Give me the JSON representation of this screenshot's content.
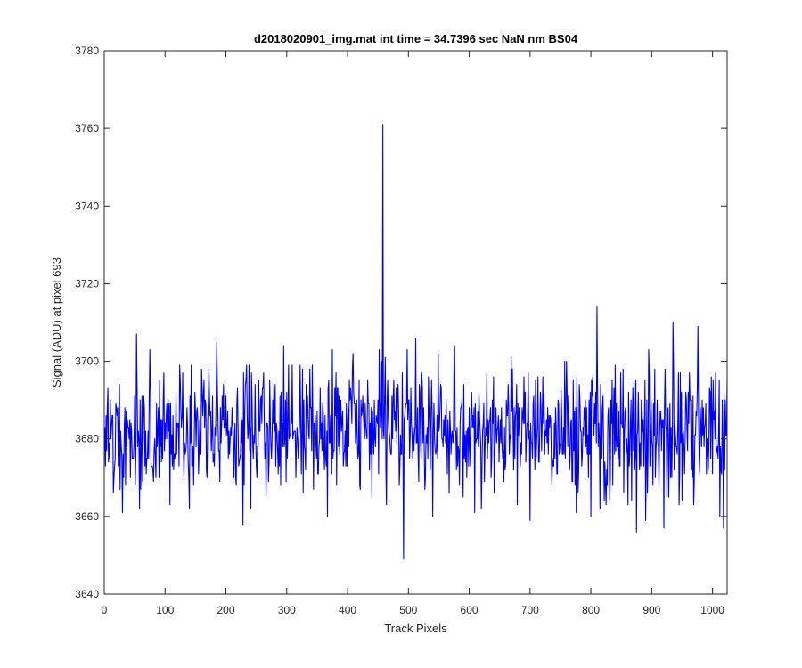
{
  "chart_data": {
    "type": "line",
    "title": "d2018020901_img.mat int time = 34.7396 sec  NaN nm BS04",
    "xlabel": "Track Pixels",
    "ylabel": "Signal (ADU) at pixel 693",
    "xlim": [
      0,
      1024
    ],
    "ylim": [
      3640,
      3780
    ],
    "xticks": [
      0,
      100,
      200,
      300,
      400,
      500,
      600,
      700,
      800,
      900,
      1000
    ],
    "yticks": [
      3640,
      3660,
      3680,
      3700,
      3720,
      3740,
      3760,
      3780
    ],
    "grid": false,
    "series": [
      {
        "color": "#0000ff",
        "noise": {
          "x_start": 1,
          "x_end": 1024,
          "mean": 3682,
          "sd": 8,
          "min": 3655,
          "max": 3714
        },
        "x": [
          2,
          10,
          30,
          53,
          80,
          140,
          185,
          228,
          290,
          342,
          367,
          409,
          440,
          452,
          456,
          458,
          460,
          462,
          465,
          480,
          489,
          492,
          495,
          500,
          540,
          575,
          620,
          640,
          700,
          760,
          800,
          810,
          812,
          840,
          875,
          905,
          920,
          935,
          950,
          990,
          1005,
          1012,
          1020,
          1024
        ],
        "y": [
          3673,
          3690,
          3661,
          3707,
          3672,
          3662,
          3705,
          3658,
          3668,
          3699,
          3660,
          3702,
          3665,
          3703,
          3700,
          3761,
          3680,
          3701,
          3690,
          3693,
          3676,
          3649,
          3688,
          3690,
          3660,
          3699,
          3662,
          3696,
          3659,
          3700,
          3660,
          3714,
          3678,
          3699,
          3656,
          3698,
          3657,
          3710,
          3664,
          3671,
          3697,
          3660,
          3672,
          3695
        ]
      }
    ]
  }
}
